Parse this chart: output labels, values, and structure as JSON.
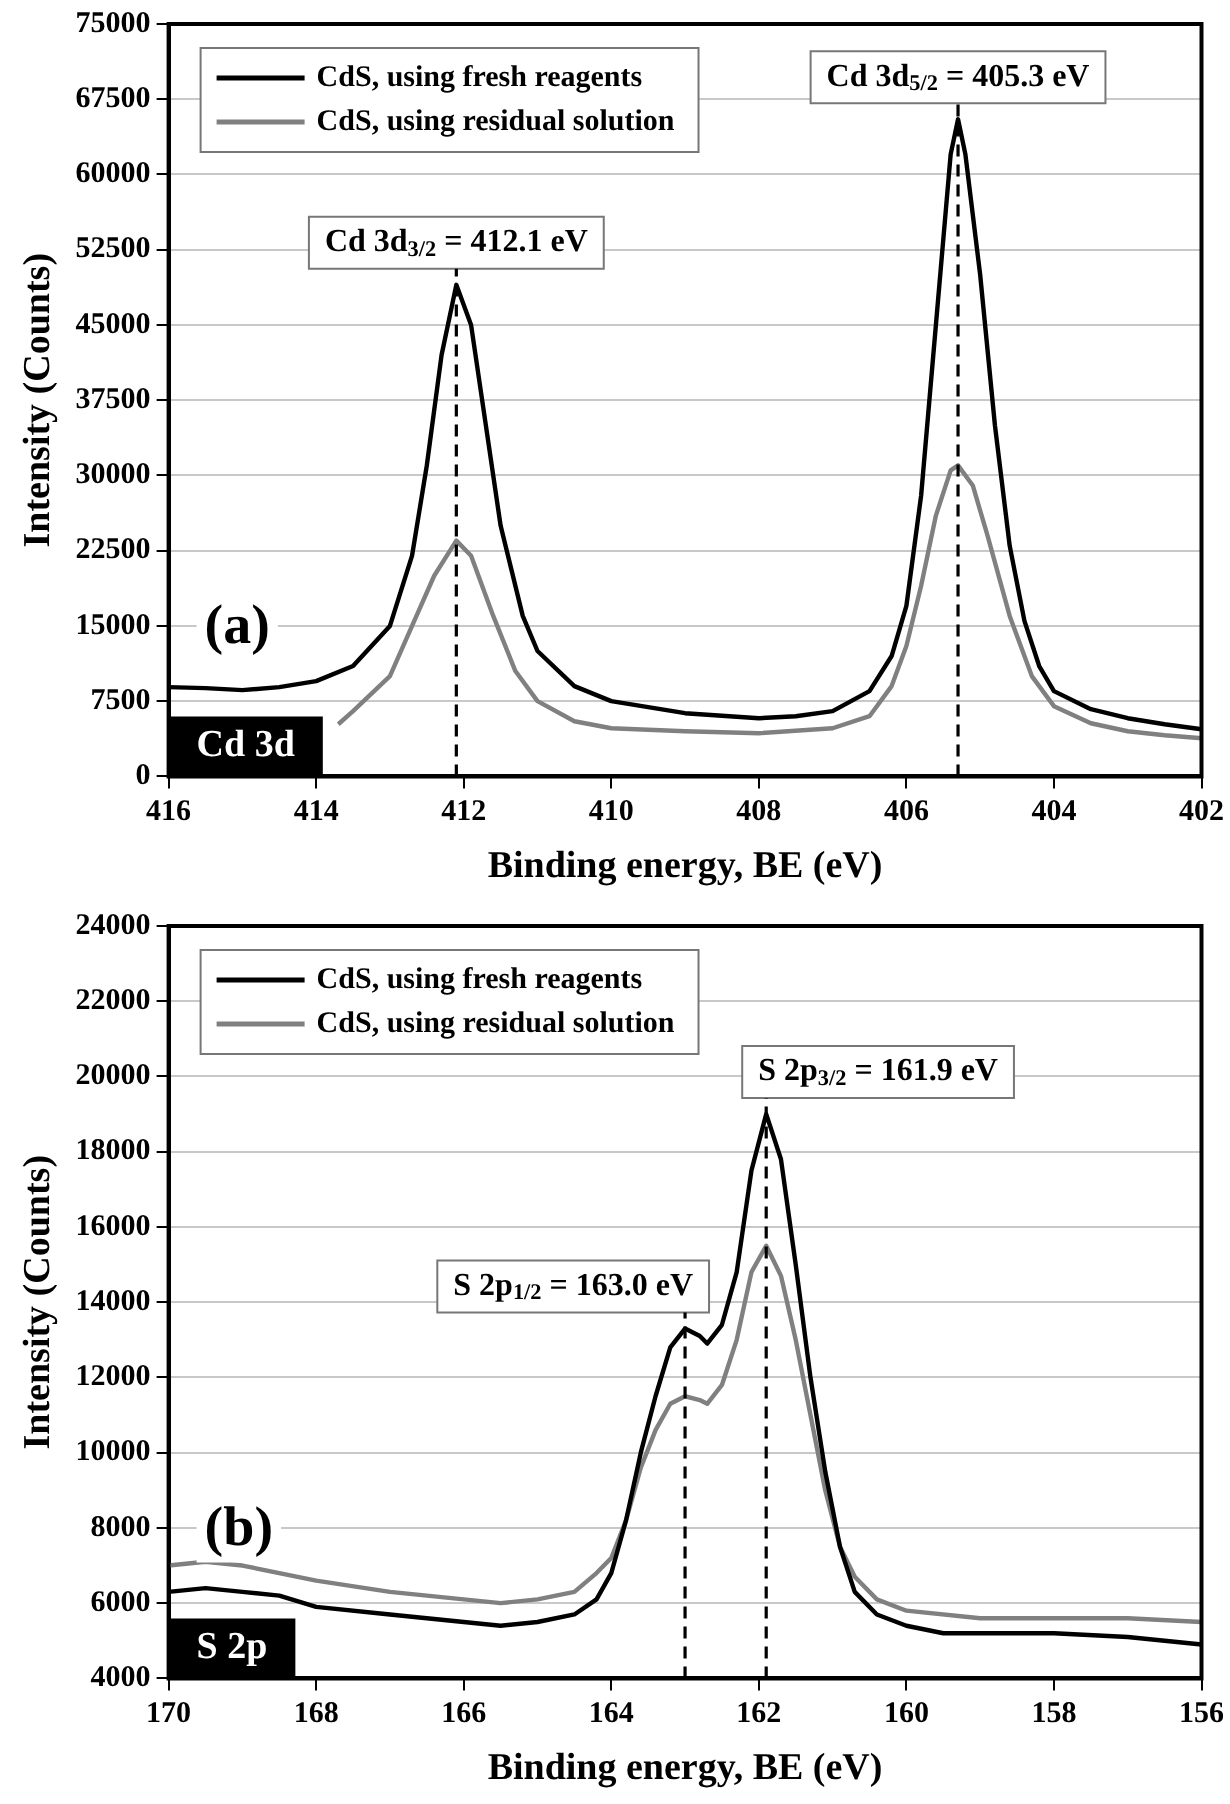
{
  "chart_data": [
    {
      "type": "line",
      "xlabel": "Binding energy, BE (eV)",
      "ylabel": "Intensity (Counts)",
      "xlim": [
        416,
        402
      ],
      "xticks": [
        416,
        414,
        412,
        410,
        408,
        406,
        404,
        402
      ],
      "ylim": [
        0,
        75000
      ],
      "yticks": [
        0,
        7500,
        15000,
        22500,
        30000,
        37500,
        45000,
        52500,
        60000,
        67500,
        75000
      ],
      "grid": "y",
      "legend": "top left",
      "line_style": "solid",
      "series": [
        {
          "name": "CdS, using fresh reagents",
          "color": "#000000",
          "x": [
            416,
            415.5,
            415,
            414.5,
            414,
            413.5,
            413,
            412.7,
            412.5,
            412.3,
            412.1,
            411.9,
            411.7,
            411.5,
            411.2,
            411,
            410.5,
            410,
            409,
            408,
            407.5,
            407,
            406.5,
            406.2,
            406,
            405.8,
            405.6,
            405.4,
            405.3,
            405.2,
            405,
            404.8,
            404.6,
            404.4,
            404.2,
            404,
            403.5,
            403,
            402.5,
            402
          ],
          "values": [
            8900,
            8800,
            8600,
            8900,
            9500,
            11000,
            15000,
            22000,
            31000,
            42000,
            49000,
            45000,
            35000,
            25000,
            16000,
            12500,
            9000,
            7500,
            6300,
            5800,
            6000,
            6500,
            8500,
            12000,
            17000,
            28000,
            45000,
            62000,
            65500,
            62000,
            50000,
            35000,
            23000,
            15500,
            11000,
            8500,
            6700,
            5800,
            5200,
            4700
          ]
        },
        {
          "name": "CdS, using residual solution",
          "color": "#808080",
          "x": [
            413.7,
            413.5,
            413,
            412.7,
            412.4,
            412.1,
            411.9,
            411.6,
            411.3,
            411,
            410.5,
            410,
            409,
            408,
            407,
            406.5,
            406.2,
            406,
            405.8,
            405.6,
            405.4,
            405.3,
            405.1,
            404.9,
            404.6,
            404.3,
            404,
            403.5,
            403,
            402.5,
            402
          ],
          "values": [
            5200,
            6500,
            10000,
            15000,
            20000,
            23500,
            22000,
            16000,
            10500,
            7500,
            5500,
            4800,
            4500,
            4300,
            4800,
            6000,
            9000,
            13000,
            19000,
            26000,
            30500,
            31000,
            29000,
            24000,
            16000,
            10000,
            7000,
            5300,
            4500,
            4100,
            3800
          ]
        }
      ],
      "ref_lines": [
        {
          "axis": "x",
          "value": 412.1,
          "label": "Cd 3d$_{3/2}$ = 412.1 eV",
          "line_style": "dashed",
          "color": "#000000"
        },
        {
          "axis": "x",
          "value": 405.3,
          "label": "Cd 3d$_{5/2}$ = 405.3 eV",
          "line_style": "dashed",
          "color": "#000000"
        }
      ],
      "annotations": [
        "(a)",
        "Cd 3d"
      ]
    },
    {
      "type": "line",
      "xlabel": "Binding energy, BE (eV)",
      "ylabel": "Intensity (Counts)",
      "xlim": [
        170,
        156
      ],
      "xticks": [
        170,
        168,
        166,
        164,
        162,
        160,
        158,
        156
      ],
      "ylim": [
        4000,
        24000
      ],
      "yticks": [
        4000,
        6000,
        8000,
        10000,
        12000,
        14000,
        16000,
        18000,
        20000,
        22000,
        24000
      ],
      "grid": "y",
      "legend": "top left",
      "line_style": "solid",
      "series": [
        {
          "name": "CdS, using fresh reagents",
          "color": "#000000",
          "x": [
            170,
            169.5,
            169,
            168.5,
            168,
            167,
            166,
            165.5,
            165,
            164.5,
            164.2,
            164,
            163.8,
            163.6,
            163.4,
            163.2,
            163,
            162.8,
            162.7,
            162.5,
            162.3,
            162.1,
            161.9,
            161.7,
            161.5,
            161.3,
            161.1,
            160.9,
            160.7,
            160.4,
            160,
            159.5,
            159,
            158,
            157,
            156
          ],
          "values": [
            6300,
            6400,
            6300,
            6200,
            5900,
            5700,
            5500,
            5400,
            5500,
            5700,
            6100,
            6800,
            8200,
            10000,
            11500,
            12800,
            13300,
            13100,
            12900,
            13400,
            14800,
            17500,
            19000,
            17800,
            15000,
            12000,
            9500,
            7500,
            6300,
            5700,
            5400,
            5200,
            5200,
            5200,
            5100,
            4900
          ]
        },
        {
          "name": "CdS, using residual solution",
          "color": "#808080",
          "x": [
            170,
            169.5,
            169,
            168,
            167,
            166,
            165.5,
            165,
            164.5,
            164.2,
            164,
            163.8,
            163.6,
            163.4,
            163.2,
            163,
            162.8,
            162.7,
            162.5,
            162.3,
            162.1,
            161.9,
            161.7,
            161.5,
            161.3,
            161.1,
            160.9,
            160.7,
            160.4,
            160,
            159,
            158,
            157,
            156
          ],
          "values": [
            7000,
            7100,
            7000,
            6600,
            6300,
            6100,
            6000,
            6100,
            6300,
            6800,
            7200,
            8200,
            9600,
            10600,
            11300,
            11500,
            11400,
            11300,
            11800,
            13000,
            14800,
            15500,
            14700,
            13000,
            11000,
            9000,
            7500,
            6700,
            6100,
            5800,
            5600,
            5600,
            5600,
            5500
          ]
        }
      ],
      "ref_lines": [
        {
          "axis": "x",
          "value": 163.0,
          "label": "S 2p$_{1/2}$ = 163.0 eV",
          "line_style": "dashed",
          "color": "#000000"
        },
        {
          "axis": "x",
          "value": 161.9,
          "label": "S 2p$_{3/2}$ = 161.9 eV",
          "line_style": "dashed",
          "color": "#000000"
        }
      ],
      "annotations": [
        "(b)",
        "S 2p"
      ]
    }
  ]
}
